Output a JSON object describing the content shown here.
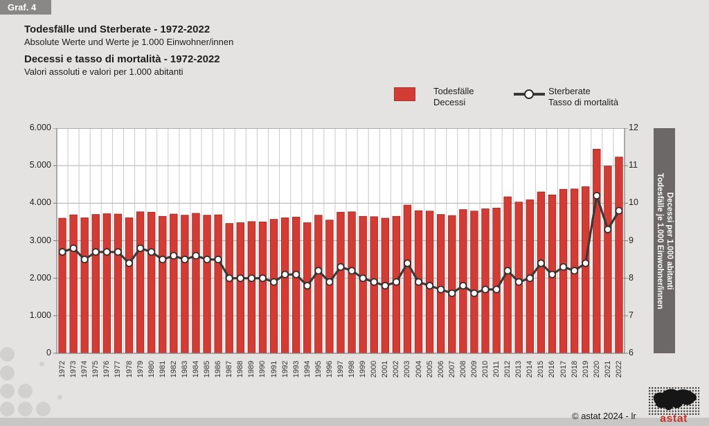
{
  "header": {
    "graf_label": "Graf. 4",
    "title_de": "Todesfälle und Sterberate - 1972-2022",
    "subtitle_de": "Absolute Werte und Werte je 1.000 Einwohner/innen",
    "title_it": "Decessi e tasso di mortalità - 1972-2022",
    "subtitle_it": "Valori assoluti e valori per 1.000 abitanti"
  },
  "legend": {
    "bars_label_de": "Todesfälle",
    "bars_label_it": "Decessi",
    "line_label_de": "Sterberate",
    "line_label_it": "Tasso di mortalità"
  },
  "axes": {
    "left_ticks": [
      "0",
      "1.000",
      "2.000",
      "3.000",
      "4.000",
      "5.000",
      "6.000"
    ],
    "right_ticks": [
      "6",
      "7",
      "8",
      "9",
      "10",
      "11",
      "12"
    ],
    "right_axis_label_de": "Todesfälle je 1.000 Einwohner/innen",
    "right_axis_label_it": "Decessi per 1.000 abitanti"
  },
  "footer": {
    "copyright": "©  astat 2024 - lr",
    "logo_text": "astat"
  },
  "colors": {
    "accent_red": "#d23c35",
    "bar_stroke": "#992a24",
    "line": "#3b3938",
    "marker_fill": "#ffffff",
    "marker_stroke": "#2e2c2b",
    "grid_h": "#b0aeac",
    "grid_v": "#cbc9c7",
    "plot_border": "#7c7a78",
    "plot_bg": "#ffffff",
    "page_bg": "#e4e3e2",
    "right_label_bar_bg": "#6b6867",
    "logo_red": "#c4332b"
  },
  "chart_data": {
    "type": "combo-bar-line",
    "title": "Todesfälle und Sterberate - 1972-2022 / Decessi e tasso di mortalità - 1972-2022",
    "xlabel": "",
    "ylabel_left": "Todesfälle / Decessi",
    "ylabel_right": "Todesfälle je 1.000 Einwohner/innen / Decessi per 1.000 abitanti",
    "grid": true,
    "legend_position": "top",
    "left_axis": {
      "min": 0,
      "max": 6000,
      "step": 1000
    },
    "right_axis": {
      "min": 6,
      "max": 12,
      "step": 1
    },
    "categories": [
      "1972",
      "1973",
      "1974",
      "1975",
      "1976",
      "1977",
      "1978",
      "1979",
      "1980",
      "1981",
      "1982",
      "1983",
      "1984",
      "1985",
      "1986",
      "1987",
      "1988",
      "1989",
      "1990",
      "1991",
      "1992",
      "1993",
      "1994",
      "1995",
      "1996",
      "1997",
      "1998",
      "1999",
      "2000",
      "2001",
      "2002",
      "2003",
      "2004",
      "2005",
      "2006",
      "2007",
      "2008",
      "2009",
      "2010",
      "2011",
      "2012",
      "2013",
      "2014",
      "2015",
      "2016",
      "2017",
      "2018",
      "2019",
      "2020",
      "2021",
      "2022"
    ],
    "series": [
      {
        "name": "Todesfälle / Decessi",
        "type": "bar",
        "axis": "left",
        "values": [
          3600,
          3690,
          3610,
          3700,
          3720,
          3710,
          3610,
          3770,
          3760,
          3650,
          3710,
          3680,
          3730,
          3680,
          3690,
          3460,
          3480,
          3510,
          3500,
          3570,
          3610,
          3630,
          3480,
          3680,
          3550,
          3760,
          3770,
          3650,
          3640,
          3600,
          3650,
          3950,
          3800,
          3790,
          3700,
          3670,
          3830,
          3790,
          3850,
          3870,
          4170,
          4030,
          4090,
          4300,
          4220,
          4370,
          4380,
          4440,
          5440,
          4990,
          5230
        ]
      },
      {
        "name": "Sterberate / Tasso di mortalità",
        "type": "line",
        "axis": "right",
        "values": [
          8.7,
          8.8,
          8.5,
          8.7,
          8.7,
          8.7,
          8.4,
          8.8,
          8.7,
          8.5,
          8.6,
          8.5,
          8.6,
          8.5,
          8.5,
          8.0,
          8.0,
          8.0,
          8.0,
          7.9,
          8.1,
          8.1,
          7.8,
          8.2,
          7.9,
          8.3,
          8.2,
          8.0,
          7.9,
          7.8,
          7.9,
          8.4,
          7.9,
          7.8,
          7.7,
          7.6,
          7.8,
          7.6,
          7.7,
          7.7,
          8.2,
          7.9,
          8.0,
          8.4,
          8.1,
          8.3,
          8.2,
          8.4,
          10.2,
          9.3,
          9.8
        ]
      }
    ]
  }
}
